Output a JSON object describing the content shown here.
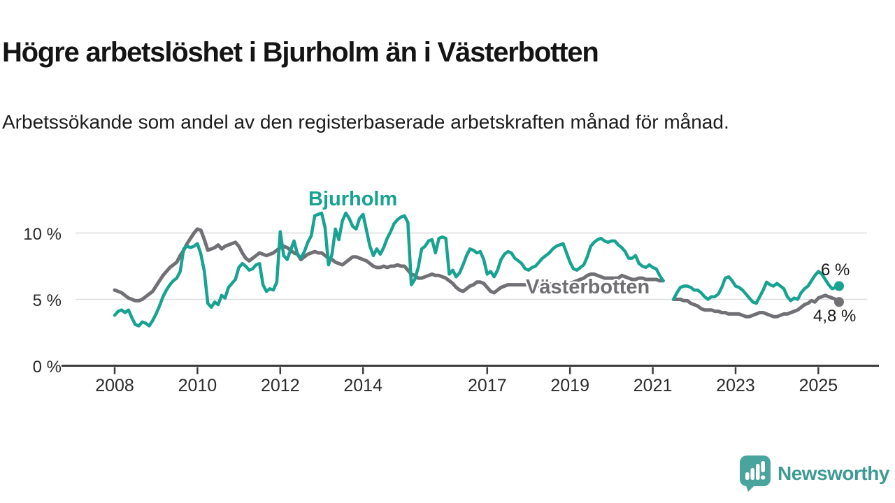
{
  "header": {
    "title": "Högre arbetslöshet i Bjurholm än i Västerbotten",
    "subtitle": "Arbetssökande som andel av den registerbaserade arbetskraften månad för månad."
  },
  "colors": {
    "bjurholm_line": "#17a292",
    "vasterbotten_line": "#707075",
    "gridline": "#dbdbdb",
    "axis": "#3c3c3c",
    "logo_icon": "#4aa49e",
    "logo_text": "#3e9b94"
  },
  "logo": {
    "text": "Newsworthy"
  },
  "chart_data": {
    "type": "line",
    "unit": "%",
    "ylim": [
      0,
      12
    ],
    "grid": "horizontal",
    "legend_position": "inline-labels",
    "data_break_note": "series gap May 2021 - Jun 2021",
    "y_ticks": [
      {
        "value": 10,
        "label": "10 %"
      },
      {
        "value": 5,
        "label": "5 %"
      },
      {
        "value": 0,
        "label": "0 %"
      }
    ],
    "x_ticks": [
      {
        "year": 2008,
        "label": "2008"
      },
      {
        "year": 2010,
        "label": "2010"
      },
      {
        "year": 2012,
        "label": "2012"
      },
      {
        "year": 2014,
        "label": "2014"
      },
      {
        "year": 2017,
        "label": "2017"
      },
      {
        "year": 2019,
        "label": "2019"
      },
      {
        "year": 2021,
        "label": "2021"
      },
      {
        "year": 2023,
        "label": "2023"
      },
      {
        "year": 2025,
        "label": "2025"
      }
    ],
    "series": [
      {
        "name": "Bjurholm",
        "label": "Bjurholm",
        "color": "#17a292",
        "end_label": "6 %",
        "end_value": 6.0,
        "segments": [
          {
            "start": "2008-01",
            "values": [
              3.8,
              4.1,
              4.2,
              4.0,
              4.2,
              3.6,
              3.1,
              3.0,
              3.3,
              3.2,
              3.0,
              3.4,
              3.9,
              4.5,
              5.2,
              5.7,
              6.1,
              6.4,
              6.6,
              7.1,
              8.8,
              9.0,
              8.9,
              9.0,
              9.2,
              8.4,
              7.1,
              4.7,
              4.4,
              4.8,
              4.6,
              5.3,
              5.1,
              5.9,
              6.2,
              6.5,
              7.4,
              7.7,
              7.5,
              7.2,
              7.3,
              7.6,
              7.7,
              6.1,
              5.6,
              5.8,
              5.7,
              6.3,
              10.1,
              8.3,
              8.0,
              8.7,
              9.4,
              8.4,
              8.1,
              8.6,
              9.3,
              9.8,
              11.3,
              11.4,
              11.5,
              10.4,
              7.6,
              8.4,
              10.3,
              9.5,
              10.9,
              11.5,
              11.1,
              10.5,
              10.3,
              11.1,
              11.4,
              10.2,
              9.0,
              8.3,
              8.8,
              8.4,
              8.9,
              9.6,
              10.1,
              10.7,
              11.0,
              11.2,
              11.3,
              10.8,
              6.1,
              6.5,
              7.4,
              8.8,
              9.0,
              9.4,
              9.5,
              8.5,
              9.6,
              9.7,
              9.6,
              6.9,
              7.2,
              6.7,
              7.0,
              7.6,
              8.3,
              8.8,
              8.7,
              8.5,
              8.6,
              8.0,
              6.9,
              7.1,
              6.7,
              7.2,
              8.0,
              8.4,
              8.6,
              8.5,
              8.1,
              7.9,
              7.7,
              7.3,
              7.2,
              7.4,
              7.5,
              7.8,
              8.1,
              8.3,
              8.5,
              8.8,
              9.0,
              9.1,
              9.2,
              8.5,
              7.8,
              7.3,
              7.2,
              7.4,
              7.6,
              8.2,
              9.0,
              9.3,
              9.5,
              9.6,
              9.4,
              9.3,
              9.4,
              9.4,
              9.1,
              8.9,
              8.6,
              8.1,
              8.1,
              8.3,
              7.7,
              7.5,
              7.4,
              7.6,
              7.4,
              7.3,
              6.8,
              6.4
            ]
          },
          {
            "start": "2021-07",
            "values": [
              5.0,
              5.5,
              5.9,
              6.0,
              6.0,
              5.9,
              5.7,
              5.7,
              5.5,
              5.2,
              5.0,
              5.2,
              5.2,
              5.4,
              5.9,
              6.6,
              6.7,
              6.4,
              6.0,
              5.9,
              5.7,
              5.4,
              5.1,
              4.8,
              4.7,
              5.2,
              5.7,
              6.3,
              6.1,
              6.0,
              6.2,
              6.0,
              5.8,
              5.2,
              4.9,
              5.1,
              5.0,
              5.5,
              5.8,
              6.0,
              6.4,
              6.8,
              7.1,
              6.9,
              6.5,
              6.1,
              5.8,
              5.9,
              6.0
            ]
          }
        ]
      },
      {
        "name": "Västerbotten",
        "label": "Västerbotten",
        "color": "#707075",
        "end_label": "4,8 %",
        "end_value": 4.8,
        "segments": [
          {
            "start": "2008-01",
            "values": [
              5.7,
              5.6,
              5.5,
              5.3,
              5.1,
              5.0,
              4.9,
              4.9,
              5.0,
              5.2,
              5.4,
              5.6,
              6.0,
              6.4,
              6.8,
              7.1,
              7.4,
              7.6,
              7.8,
              8.3,
              8.7,
              9.2,
              9.6,
              10.0,
              10.3,
              10.2,
              9.5,
              8.7,
              8.8,
              8.9,
              9.1,
              8.8,
              9.0,
              9.1,
              9.2,
              9.3,
              9.0,
              8.5,
              8.1,
              7.9,
              8.1,
              8.3,
              8.5,
              8.4,
              8.3,
              8.4,
              8.5,
              8.7,
              8.9,
              9.0,
              8.9,
              8.7,
              8.5,
              8.4,
              8.0,
              8.2,
              8.4,
              8.5,
              8.6,
              8.5,
              8.5,
              8.3,
              8.1,
              8.0,
              7.8,
              7.7,
              7.6,
              7.8,
              8.0,
              8.2,
              8.2,
              8.1,
              8.0,
              7.9,
              7.7,
              7.5,
              7.4,
              7.4,
              7.5,
              7.4,
              7.5,
              7.5,
              7.6,
              7.5,
              7.5,
              7.2,
              6.9,
              6.8,
              6.6,
              6.6,
              6.7,
              6.8,
              6.9,
              6.8,
              6.8,
              6.7,
              6.6,
              6.4,
              6.2,
              5.9,
              5.7,
              5.6,
              5.8,
              6.0,
              6.1,
              6.3,
              6.3,
              6.2,
              5.9,
              5.6,
              5.5,
              5.7,
              5.9,
              6.0,
              6.1,
              6.1,
              6.1,
              6.1,
              6.1,
              6.1,
              6.1,
              6.0,
              6.0,
              6.0,
              6.0,
              6.1,
              6.1,
              6.2,
              6.2,
              6.2,
              6.2,
              6.2,
              6.2,
              6.3,
              6.4,
              6.5,
              6.6,
              6.8,
              6.9,
              6.9,
              6.8,
              6.7,
              6.6,
              6.6,
              6.6,
              6.6,
              6.6,
              6.8,
              6.7,
              6.6,
              6.5,
              6.5,
              6.6,
              6.6,
              6.5,
              6.5,
              6.5,
              6.5,
              6.4,
              6.4
            ]
          },
          {
            "start": "2021-07",
            "values": [
              5.0,
              5.0,
              5.0,
              4.9,
              4.9,
              4.7,
              4.6,
              4.5,
              4.3,
              4.2,
              4.2,
              4.2,
              4.1,
              4.1,
              4.0,
              4.0,
              3.9,
              3.9,
              3.9,
              3.9,
              3.8,
              3.7,
              3.7,
              3.8,
              3.9,
              4.0,
              4.0,
              3.9,
              3.8,
              3.7,
              3.7,
              3.8,
              3.9,
              3.9,
              4.0,
              4.1,
              4.2,
              4.4,
              4.6,
              4.7,
              4.9,
              4.8,
              5.1,
              5.2,
              5.3,
              5.2,
              5.1,
              5.0,
              4.8
            ]
          }
        ]
      }
    ]
  }
}
